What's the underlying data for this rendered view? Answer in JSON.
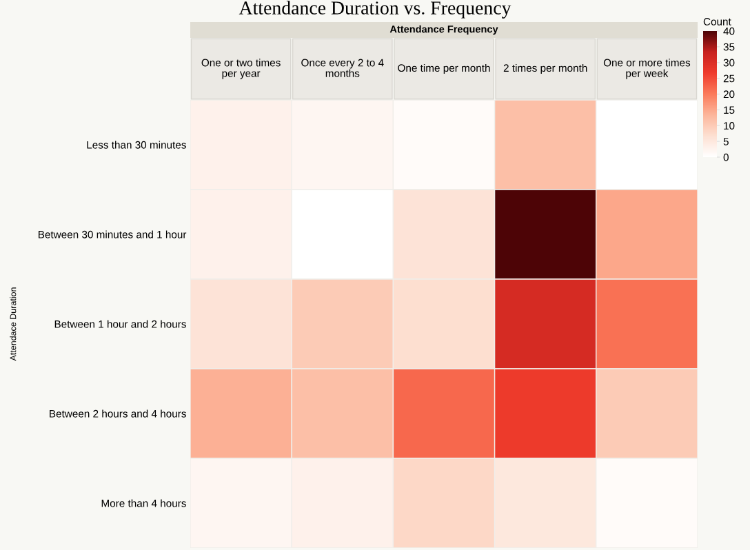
{
  "chart_data": {
    "type": "heatmap",
    "title": "Attendance Duration vs. Frequency",
    "xlabel": "Attendance Frequency",
    "ylabel": "Attendace Duration",
    "clabel": "Count",
    "categories": [
      "One or two times per year",
      "Once every 2 to 4 months",
      "One time per month",
      "2 times per month",
      "One or more times per week"
    ],
    "y_categories": [
      "Less than 30 minutes",
      "Between 30 minutes and 1 hour",
      "Between 1 hour and 2 hours",
      "Between 2 hours and 4 hours",
      "More than 4 hours"
    ],
    "cells": [
      [
        3,
        2,
        1,
        12,
        0
      ],
      [
        3,
        0,
        6,
        40,
        15
      ],
      [
        6,
        10,
        7,
        31,
        21
      ],
      [
        14,
        12,
        22,
        27,
        10
      ],
      [
        2,
        3,
        8,
        5,
        1
      ]
    ],
    "clim": [
      0,
      40
    ],
    "cticks": [
      0,
      5,
      10,
      15,
      20,
      25,
      30,
      35,
      40
    ]
  }
}
